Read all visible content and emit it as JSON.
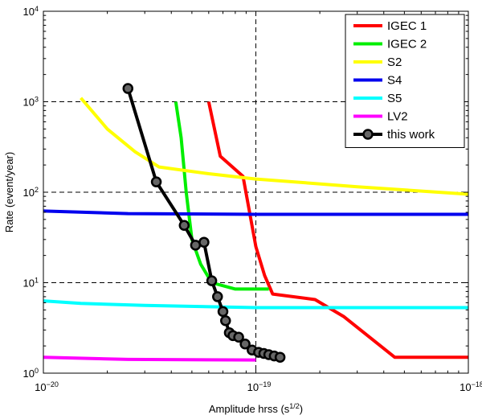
{
  "chart_data": {
    "type": "line",
    "xscale": "log",
    "yscale": "log",
    "xlim": [
      1e-20,
      1e-18
    ],
    "ylim": [
      1,
      10000
    ],
    "x_ticks": [
      {
        "base": "10",
        "exp": "−20"
      },
      {
        "base": "10",
        "exp": "−19"
      },
      {
        "base": "10",
        "exp": "−18"
      }
    ],
    "y_ticks": [
      {
        "base": "10",
        "exp": "0"
      },
      {
        "base": "10",
        "exp": "1"
      },
      {
        "base": "10",
        "exp": "2"
      },
      {
        "base": "10",
        "exp": "3"
      },
      {
        "base": "10",
        "exp": "4"
      }
    ],
    "xlabel": {
      "text": "Amplitude hrss (s",
      "sup": "1/2",
      "suffix": ")"
    },
    "ylabel": "Rate (event/year)",
    "grid": "dashed at y=10, 100, 1000 and x=1e-19",
    "legend_position": "top-right",
    "series": [
      {
        "name": "IGEC 1",
        "color": "#ff0000",
        "marker": "none",
        "x": [
          6e-20,
          6.8e-20,
          8.7e-20,
          1e-19,
          1.1e-19,
          1.2e-19,
          1.9e-19,
          2.6e-19,
          4.5e-19,
          1e-18
        ],
        "y": [
          1000,
          250,
          150,
          25,
          12,
          7.5,
          6.5,
          4.2,
          1.5,
          1.5
        ]
      },
      {
        "name": "IGEC 2",
        "color": "#00ee00",
        "marker": "none",
        "x": [
          4.2e-20,
          4.45e-20,
          4.7e-20,
          5e-20,
          5.5e-20,
          6.2e-20,
          8e-20,
          1.15e-19
        ],
        "y": [
          1000,
          400,
          100,
          30,
          16,
          10,
          8.5,
          8.5
        ]
      },
      {
        "name": "S2",
        "color": "#ffff00",
        "marker": "none",
        "x": [
          1.5e-20,
          2e-20,
          2.7e-20,
          3.5e-20,
          6e-20,
          1e-19,
          3e-19,
          1e-18
        ],
        "y": [
          1100,
          500,
          280,
          190,
          160,
          140,
          115,
          95
        ]
      },
      {
        "name": "S4",
        "color": "#0000ee",
        "marker": "none",
        "x": [
          1e-20,
          2.5e-20,
          1e-19,
          1e-18
        ],
        "y": [
          62,
          58,
          57,
          57
        ]
      },
      {
        "name": "S5",
        "color": "#00ffff",
        "marker": "none",
        "x": [
          1e-20,
          1.5e-20,
          3e-20,
          1e-19,
          1e-18
        ],
        "y": [
          6.3,
          5.9,
          5.6,
          5.3,
          5.3
        ]
      },
      {
        "name": "LV2",
        "color": "#ff00ff",
        "marker": "none",
        "x": [
          1e-20,
          2.5e-20,
          1e-19
        ],
        "y": [
          1.5,
          1.42,
          1.4
        ]
      },
      {
        "name": "this work",
        "color": "#000000",
        "marker": "circle",
        "x": [
          2.5e-20,
          3.4e-20,
          4.6e-20,
          5.2e-20,
          5.7e-20,
          6.2e-20,
          6.6e-20,
          7e-20,
          7.2e-20,
          7.5e-20,
          7.8e-20,
          8.3e-20,
          8.9e-20,
          9.6e-20,
          1.03e-19,
          1.09e-19,
          1.15e-19,
          1.22e-19,
          1.3e-19
        ],
        "y": [
          1400,
          130,
          43,
          26,
          28,
          10.5,
          7.0,
          4.8,
          3.8,
          2.8,
          2.6,
          2.5,
          2.1,
          1.8,
          1.7,
          1.65,
          1.6,
          1.55,
          1.5
        ]
      }
    ]
  }
}
